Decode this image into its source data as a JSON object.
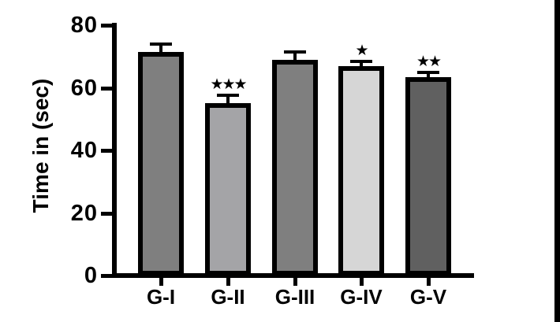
{
  "chart_data": {
    "type": "bar",
    "title": "",
    "ylabel": "Time in (sec)",
    "xlabel": "",
    "ylim": [
      0,
      80
    ],
    "yticks": [
      0,
      20,
      40,
      60,
      80
    ],
    "categories": [
      "G-I",
      "G-II",
      "G-III",
      "G-IV",
      "G-V"
    ],
    "values": [
      71.5,
      55,
      69,
      67,
      63.5
    ],
    "errors": [
      2.5,
      2.5,
      2.5,
      1.5,
      1.5
    ],
    "significance": [
      "",
      "***",
      "",
      "*",
      "**"
    ],
    "bar_colors": [
      "#7f7f7f",
      "#a4a4a7",
      "#7f7f7f",
      "#d6d6d6",
      "#606060"
    ],
    "bar_border_color": "#000000",
    "axis_color": "#000000",
    "background": "#ffffff",
    "grid": false,
    "legend": null,
    "error_bar_style": "upper-only-with-cap"
  },
  "frame": {
    "right_edge_strip_color": "#000000"
  }
}
